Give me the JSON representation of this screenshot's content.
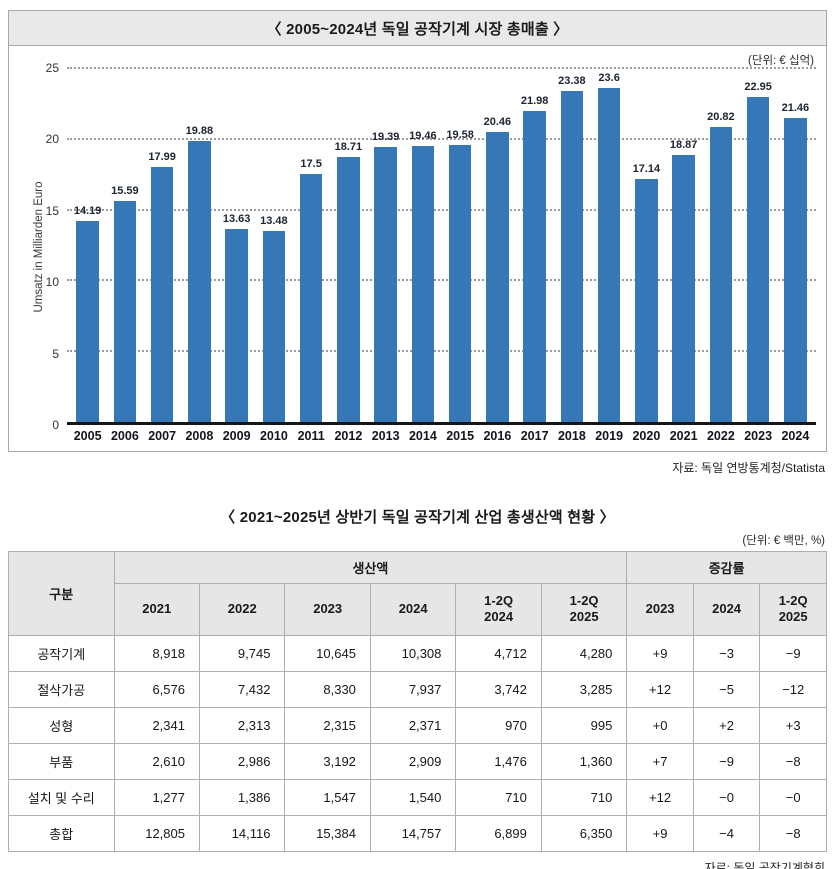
{
  "chart": {
    "title": "〈 2005~2024년 독일 공작기계 시장 총매출 〉",
    "unit": "(단위: € 십억)",
    "ylabel": "Umsatz in Milliarden Euro",
    "source": "자료: 독일 연방통계청/Statista"
  },
  "chart_data": {
    "type": "bar",
    "title": "〈 2005~2024년 독일 공작기계 시장 총매출 〉",
    "xlabel": "",
    "ylabel": "Umsatz in Milliarden Euro",
    "unit_note": "(단위: € 십억)",
    "categories": [
      "2005",
      "2006",
      "2007",
      "2008",
      "2009",
      "2010",
      "2011",
      "2012",
      "2013",
      "2014",
      "2015",
      "2016",
      "2017",
      "2018",
      "2019",
      "2020",
      "2021",
      "2022",
      "2023",
      "2024"
    ],
    "values": [
      14.19,
      15.59,
      17.99,
      19.88,
      13.63,
      13.48,
      17.5,
      18.71,
      19.39,
      19.46,
      19.58,
      20.46,
      21.98,
      23.38,
      23.6,
      17.14,
      18.87,
      20.82,
      22.95,
      21.46
    ],
    "ylim": [
      0,
      25
    ],
    "yticks": [
      0,
      5,
      10,
      15,
      20,
      25
    ],
    "grid": "dotted-horizontal",
    "legend": "none",
    "bar_color": "#3677b8",
    "source": "자료: 독일 연방통계청/Statista"
  },
  "table": {
    "title": "〈 2021~2025년 상반기 독일 공작기계 산업 총생산액 현황 〉",
    "unit": "(단위: € 백만, %)",
    "category_header": "구분",
    "group_production": "생산액",
    "group_change": "증감률",
    "production_cols": [
      "2021",
      "2022",
      "2023",
      "2024",
      "1-2Q\n2024",
      "1-2Q\n2025"
    ],
    "change_cols": [
      "2023",
      "2024",
      "1-2Q\n2025"
    ],
    "rows": [
      {
        "label": "공작기계",
        "production": [
          "8,918",
          "9,745",
          "10,645",
          "10,308",
          "4,712",
          "4,280"
        ],
        "change": [
          "+9",
          "−3",
          "−9"
        ]
      },
      {
        "label": "절삭가공",
        "production": [
          "6,576",
          "7,432",
          "8,330",
          "7,937",
          "3,742",
          "3,285"
        ],
        "change": [
          "+12",
          "−5",
          "−12"
        ]
      },
      {
        "label": "성형",
        "production": [
          "2,341",
          "2,313",
          "2,315",
          "2,371",
          "970",
          "995"
        ],
        "change": [
          "+0",
          "+2",
          "+3"
        ]
      },
      {
        "label": "부품",
        "production": [
          "2,610",
          "2,986",
          "3,192",
          "2,909",
          "1,476",
          "1,360"
        ],
        "change": [
          "+7",
          "−9",
          "−8"
        ]
      },
      {
        "label": "설치 및 수리",
        "production": [
          "1,277",
          "1,386",
          "1,547",
          "1,540",
          "710",
          "710"
        ],
        "change": [
          "+12",
          "−0",
          "−0"
        ]
      },
      {
        "label": "총합",
        "production": [
          "12,805",
          "14,116",
          "15,384",
          "14,757",
          "6,899",
          "6,350"
        ],
        "change": [
          "+9",
          "−4",
          "−8"
        ]
      }
    ],
    "source": "자료: 독일 공작기계협회"
  },
  "colors": {
    "bar": "#3677b8",
    "chart_title_bg": "#e9e9e9",
    "table_header_bg": "#e6e6e6",
    "border": "#aeaeae",
    "gridline": "#9b9b9b",
    "axis_line": "#161616"
  }
}
